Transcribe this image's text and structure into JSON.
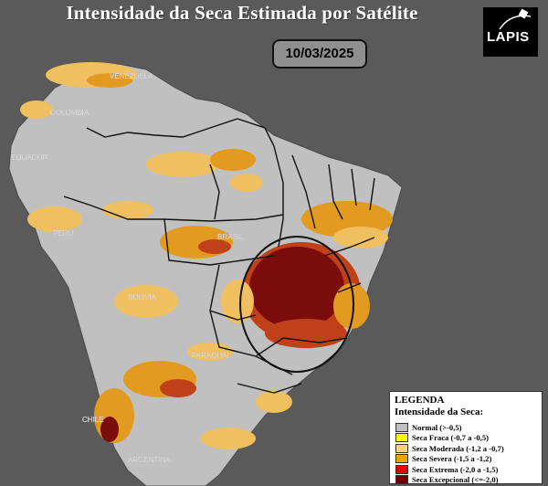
{
  "header": {
    "title": "Intensidade da Seca Estimada por Satélite",
    "date": "10/03/2025",
    "logo_text": "LAPIS"
  },
  "map_labels": [
    "VENEZUELA",
    "COLOMBIA",
    "EQUADOR",
    "PERU",
    "BRASIL",
    "BOLIVIA",
    "PARAGUAI",
    "CHILE",
    "ARGENTINA"
  ],
  "legend": {
    "heading": "LEGENDA",
    "subheading": "Intensidade da Seca:",
    "items": [
      {
        "label": "Normal (>-0,5)",
        "color": "#c0c0c0"
      },
      {
        "label": "Seca Fraca (-0,7 a -0,5)",
        "color": "#ffff00"
      },
      {
        "label": "Seca Moderada (-1,2 a -0,7)",
        "color": "#fcd27a"
      },
      {
        "label": "Seca Severa (-1,5 a -1,2)",
        "color": "#f3a200"
      },
      {
        "label": "Seca Extrema (-2,0 a -1,5)",
        "color": "#e60000"
      },
      {
        "label": "Seca Excepcional (<=-2,0)",
        "color": "#730000"
      }
    ]
  },
  "colors": {
    "ocean": "#5a5a5a",
    "land": "#c0c0c0",
    "weak": "#f7e06a",
    "moderate": "#f0c060",
    "severe": "#e39a20",
    "extreme": "#c0401a",
    "exceptional": "#7a0c0c"
  }
}
